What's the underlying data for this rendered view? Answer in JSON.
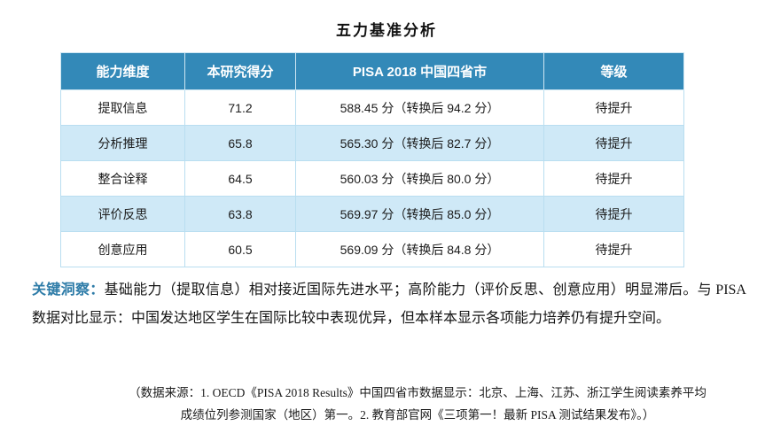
{
  "title": "五力基准分析",
  "table": {
    "headers": [
      "能力维度",
      "本研究得分",
      "PISA 2018 中国四省市",
      "等级"
    ],
    "rows": [
      [
        "提取信息",
        "71.2",
        "588.45 分（转换后 94.2 分）",
        "待提升"
      ],
      [
        "分析推理",
        "65.8",
        "565.30 分（转换后 82.7 分）",
        "待提升"
      ],
      [
        "整合诠释",
        "64.5",
        "560.03 分（转换后 80.0 分）",
        "待提升"
      ],
      [
        "评价反思",
        "63.8",
        "569.97 分（转换后 85.0 分）",
        "待提升"
      ],
      [
        "创意应用",
        "60.5",
        "569.09 分（转换后 84.8 分）",
        "待提升"
      ]
    ]
  },
  "insight": {
    "label": "关键洞察：",
    "text": "基础能力（提取信息）相对接近国际先进水平；高阶能力（评价反思、创意应用）明显滞后。与 PISA 数据对比显示：中国发达地区学生在国际比较中表现优异，但本样本显示各项能力培养仍有提升空间。"
  },
  "footnote": {
    "line1": "（数据来源：1. OECD《PISA 2018 Results》中国四省市数据显示：北京、上海、江苏、浙江学生阅读素养平均",
    "line2": "成绩位列参测国家（地区）第一。2. 教育部官网《三项第一！最新 PISA 测试结果发布》。）"
  },
  "colors": {
    "header_bg": "#3389b8",
    "row_alt_bg": "#cfe9f7",
    "table_border": "#b9def0",
    "header_cell_border": "#cfe7f3",
    "insight_label": "#2e7ca8"
  }
}
